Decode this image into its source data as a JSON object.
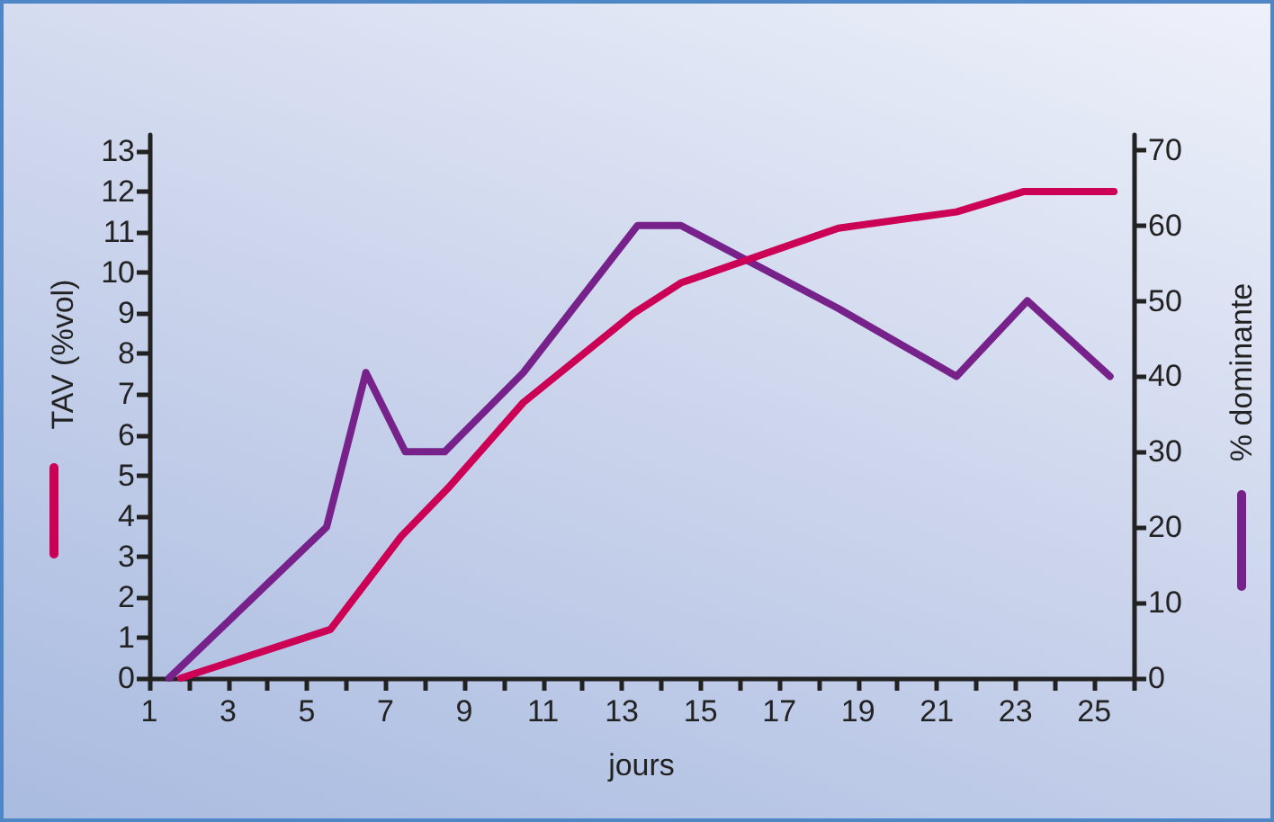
{
  "chart_data": {
    "type": "line",
    "xlabel": "jours",
    "ylabel": "TAV (%vol)",
    "y2label": "% dominante",
    "xlim": [
      1,
      26
    ],
    "xticks": [
      1,
      {
        "value": 2,
        "label": null
      },
      3,
      {
        "value": 4,
        "label": null
      },
      5,
      {
        "value": 6,
        "label": null
      },
      7,
      {
        "value": 8,
        "label": null
      },
      9,
      {
        "value": 10,
        "label": null
      },
      11,
      {
        "value": 12,
        "label": null
      },
      13,
      {
        "value": 14,
        "label": null
      },
      15,
      {
        "value": 16,
        "label": null
      },
      17,
      {
        "value": 18,
        "label": null
      },
      19,
      {
        "value": 20,
        "label": null
      },
      21,
      {
        "value": 22,
        "label": null
      },
      23,
      {
        "value": 24,
        "label": null
      },
      25,
      {
        "value": 26,
        "label": null
      }
    ],
    "ylim": [
      0,
      13.4
    ],
    "yticks": [
      0,
      1,
      2,
      3,
      4,
      5,
      6,
      7,
      8,
      9,
      10,
      11,
      12,
      13
    ],
    "y2lim": [
      0,
      72
    ],
    "y2ticks": [
      0,
      10,
      20,
      30,
      40,
      50,
      60,
      70
    ],
    "grid": false,
    "marker": "none",
    "line_style": "solid",
    "series": [
      {
        "color": "#cc0055",
        "x": [
          1.8,
          5.6,
          7.4,
          8.6,
          10.5,
          13.3,
          14.5,
          18.5,
          21.5,
          23.2,
          25.5
        ],
        "values": [
          0,
          1.2,
          3.5,
          4.7,
          6.8,
          9.0,
          9.75,
          11.1,
          11.5,
          12.0,
          12.0
        ]
      },
      {
        "color": "#77228a",
        "axis": "y2",
        "x": [
          1.5,
          5.5,
          6.5,
          7.5,
          8.5,
          10.5,
          13.4,
          14.5,
          18.5,
          21.5,
          23.3,
          25.4
        ],
        "values": [
          0,
          20,
          40.5,
          30,
          30,
          40.5,
          60,
          60,
          49,
          40,
          50,
          40
        ]
      }
    ]
  }
}
